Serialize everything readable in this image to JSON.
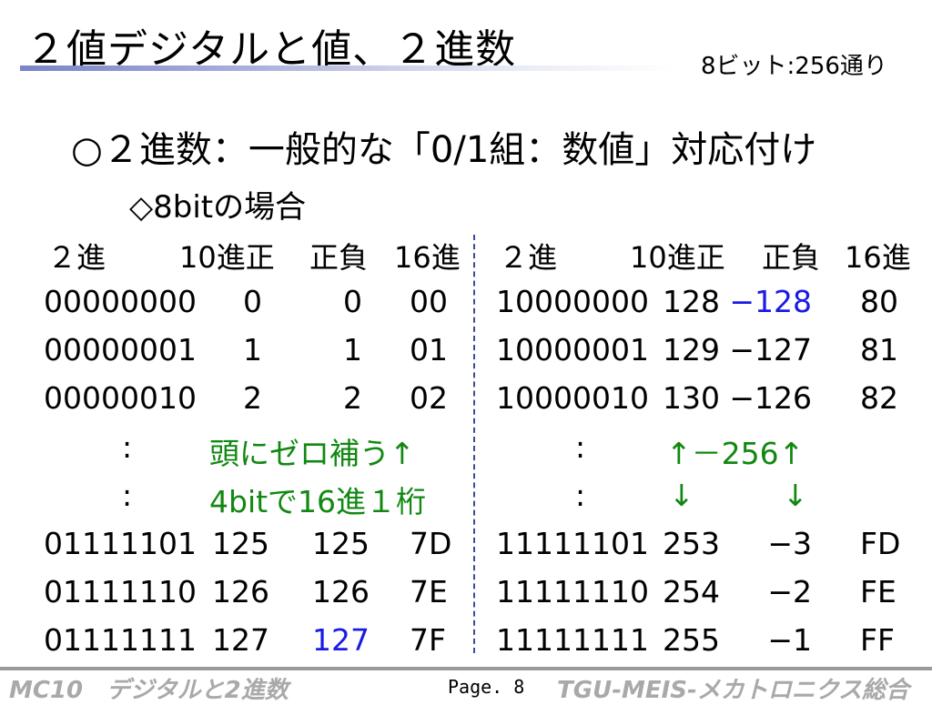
{
  "header": {
    "title": "２値デジタルと値、２進数",
    "subtitle_right": "8ビット:256通り"
  },
  "main": {
    "heading": "○２進数：一般的な「0/1組：数値」対応付け",
    "subheading": "◇8bitの場合"
  },
  "table": {
    "headers_left": [
      "２進",
      "10進正",
      "正負",
      "16進"
    ],
    "headers_right": [
      "２進",
      "10進正",
      "正負",
      "16進"
    ],
    "rows_top": [
      {
        "bin_l": "00000000",
        "dec_l": "0",
        "sgn_l": "0",
        "hex_l": "00",
        "bin_r": "10000000",
        "dec_r": "128",
        "sgn_r": "−128",
        "hex_r": "80"
      },
      {
        "bin_l": "00000001",
        "dec_l": "1",
        "sgn_l": "1",
        "hex_l": "01",
        "bin_r": "10000001",
        "dec_r": "129",
        "sgn_r": "−127",
        "hex_r": "81"
      },
      {
        "bin_l": "00000010",
        "dec_l": "2",
        "sgn_l": "2",
        "hex_l": "02",
        "bin_r": "10000010",
        "dec_r": "130",
        "sgn_r": "−126",
        "hex_r": "82"
      }
    ],
    "notes": {
      "ellipsis": ":",
      "zero_pad": "頭にゼロ補う↑",
      "hex_digit": "4bitで16進１桁",
      "minus_256": "↑－256↑",
      "arrow_down": "↓"
    },
    "rows_bottom": [
      {
        "bin_l": "01111101",
        "dec_l": "125",
        "sgn_l": "125",
        "hex_l": "7D",
        "bin_r": "11111101",
        "dec_r": "253",
        "sgn_r": "−3",
        "hex_r": "FD"
      },
      {
        "bin_l": "01111110",
        "dec_l": "126",
        "sgn_l": "126",
        "hex_l": "7E",
        "bin_r": "11111110",
        "dec_r": "254",
        "sgn_r": "−2",
        "hex_r": "FE"
      },
      {
        "bin_l": "01111111",
        "dec_l": "127",
        "sgn_l": "127",
        "hex_l": "7F",
        "bin_r": "11111111",
        "dec_r": "255",
        "sgn_r": "−1",
        "hex_r": "FF"
      }
    ]
  },
  "footer": {
    "left": "MC10　デジタルと2進数",
    "page": "Page. 8",
    "right": "TGU-MEIS-メカトロニクス総合"
  },
  "colors": {
    "accent_blue": "#1a1ae6",
    "note_green": "#118811",
    "footer_gray": "#a9a9a9",
    "title_underline": "#7a84c8"
  }
}
